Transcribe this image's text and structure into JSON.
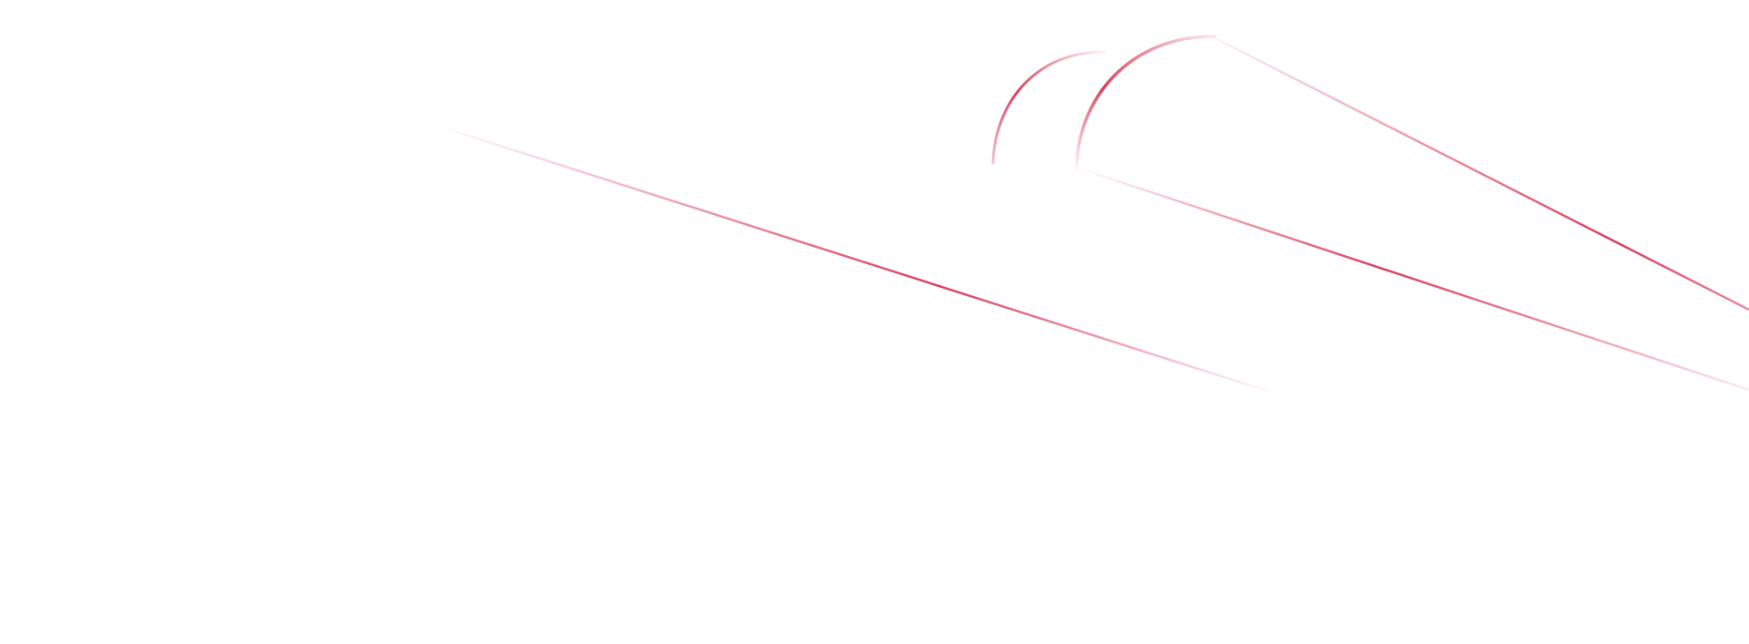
{
  "decoration": {
    "accent_color": "#d9405e",
    "background_color": "#ffffff",
    "fade_color": "#f6c9d3"
  }
}
